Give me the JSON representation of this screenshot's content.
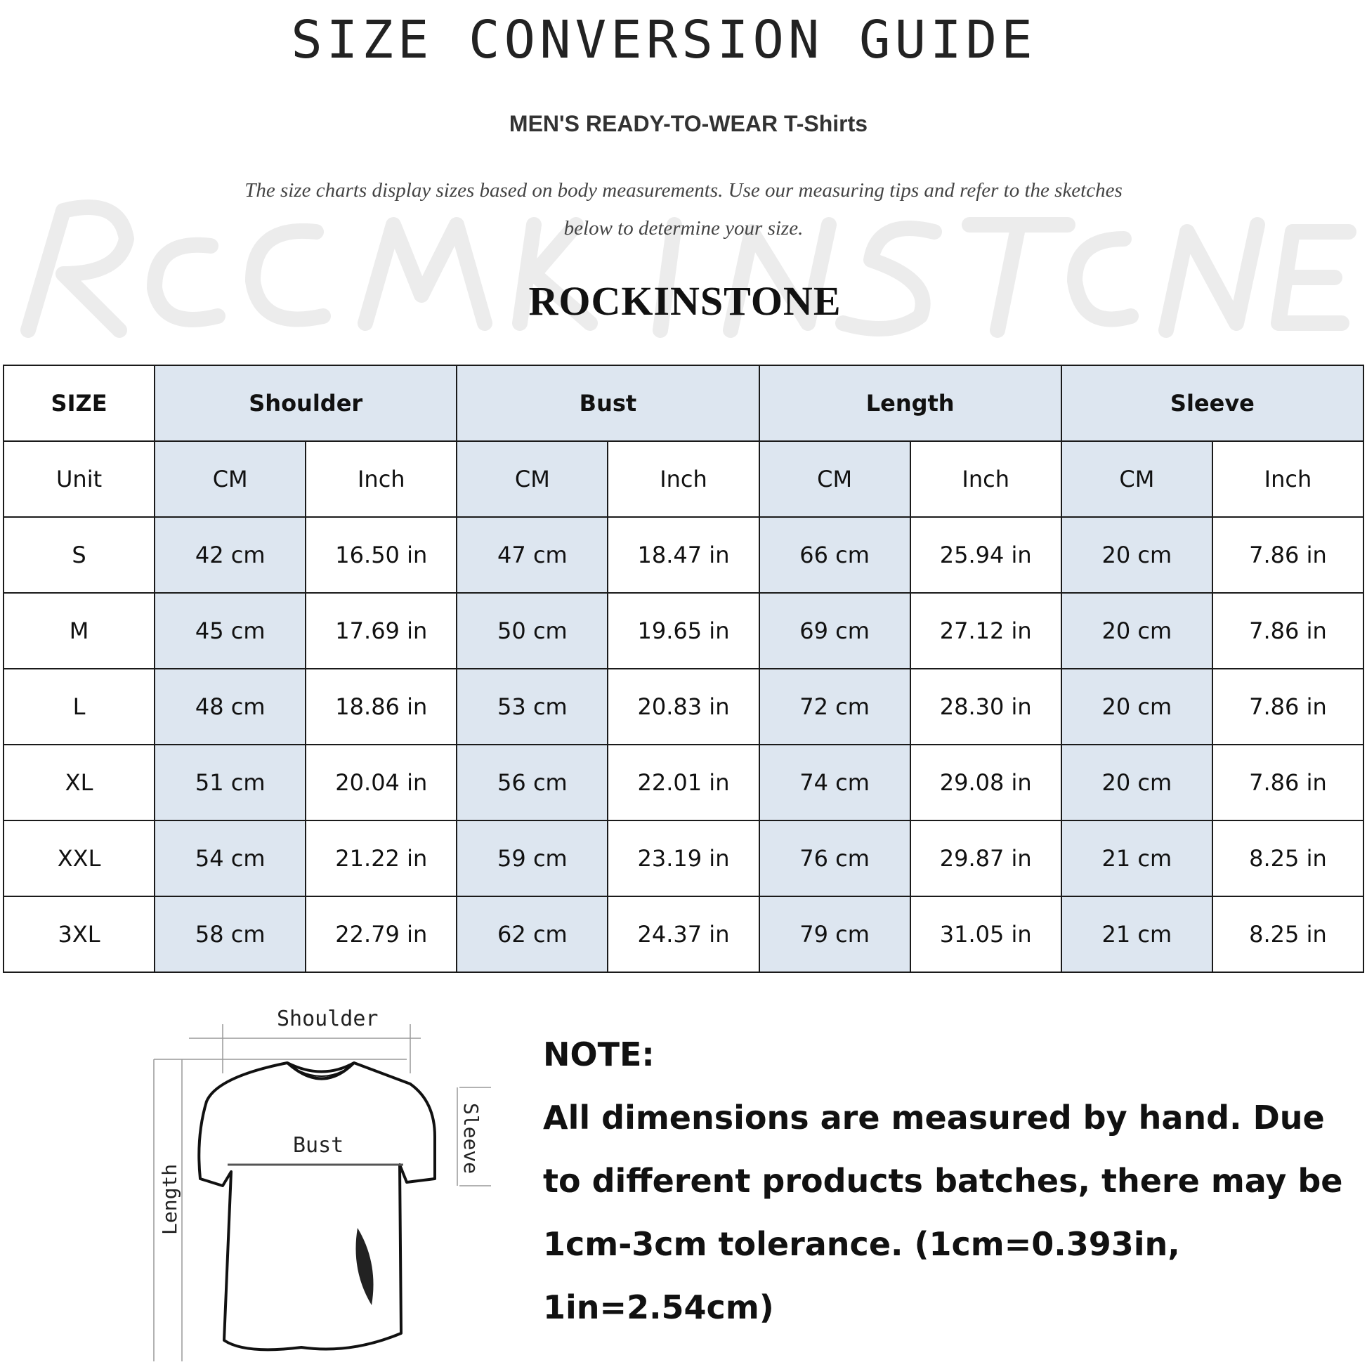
{
  "header": {
    "title": "SIZE CONVERSION GUIDE",
    "subtitle": "MEN'S READY-TO-WEAR T-Shirts",
    "description_line1": "The size charts display sizes based on body measurements. Use our measuring tips and refer to the sketches",
    "description_line2": "below to determine your size.",
    "watermark": "ROCKINSTONE",
    "brand": "ROCKINSTONE"
  },
  "table": {
    "size_header": "SIZE",
    "groups": [
      "Shoulder",
      "Bust",
      "Length",
      "Sleeve"
    ],
    "unit_label": "Unit",
    "units": [
      "CM",
      "Inch",
      "CM",
      "Inch",
      "CM",
      "Inch",
      "CM",
      "Inch"
    ],
    "rows": [
      {
        "size": "S",
        "values": [
          "42 cm",
          "16.50 in",
          "47 cm",
          "18.47  in",
          "66 cm",
          "25.94  in",
          "20 cm",
          "7.86  in"
        ]
      },
      {
        "size": "M",
        "values": [
          "45 cm",
          "17.69  in",
          "50 cm",
          "19.65  in",
          "69 cm",
          "27.12  in",
          "20 cm",
          "7.86  in"
        ]
      },
      {
        "size": "L",
        "values": [
          "48 cm",
          "18.86  in",
          "53 cm",
          "20.83  in",
          "72 cm",
          "28.30  in",
          "20 cm",
          "7.86  in"
        ]
      },
      {
        "size": "XL",
        "values": [
          "51 cm",
          "20.04  in",
          "56 cm",
          "22.01  in",
          "74 cm",
          "29.08  in",
          "20 cm",
          "7.86  in"
        ]
      },
      {
        "size": "XXL",
        "values": [
          "54 cm",
          "21.22  in",
          "59 cm",
          "23.19  in",
          "76 cm",
          "29.87  in",
          "21 cm",
          "8.25  in"
        ]
      },
      {
        "size": "3XL",
        "values": [
          "58 cm",
          "22.79  in",
          "62 cm",
          "24.37  in",
          "79 cm",
          "31.05  in",
          "21 cm",
          "8.25  in"
        ]
      }
    ],
    "colors": {
      "shaded": "#dde6f0",
      "border": "#1a1a1a"
    }
  },
  "sketch": {
    "shoulder": "Shoulder",
    "bust": "Bust",
    "sleeve": "Sleeve",
    "length": "Length"
  },
  "note": {
    "heading": "NOTE:",
    "text": "All dimensions are measured by hand. Due to different products batches, there may be 1cm-3cm tolerance. (1cm=0.393in, 1in=2.54cm)"
  }
}
